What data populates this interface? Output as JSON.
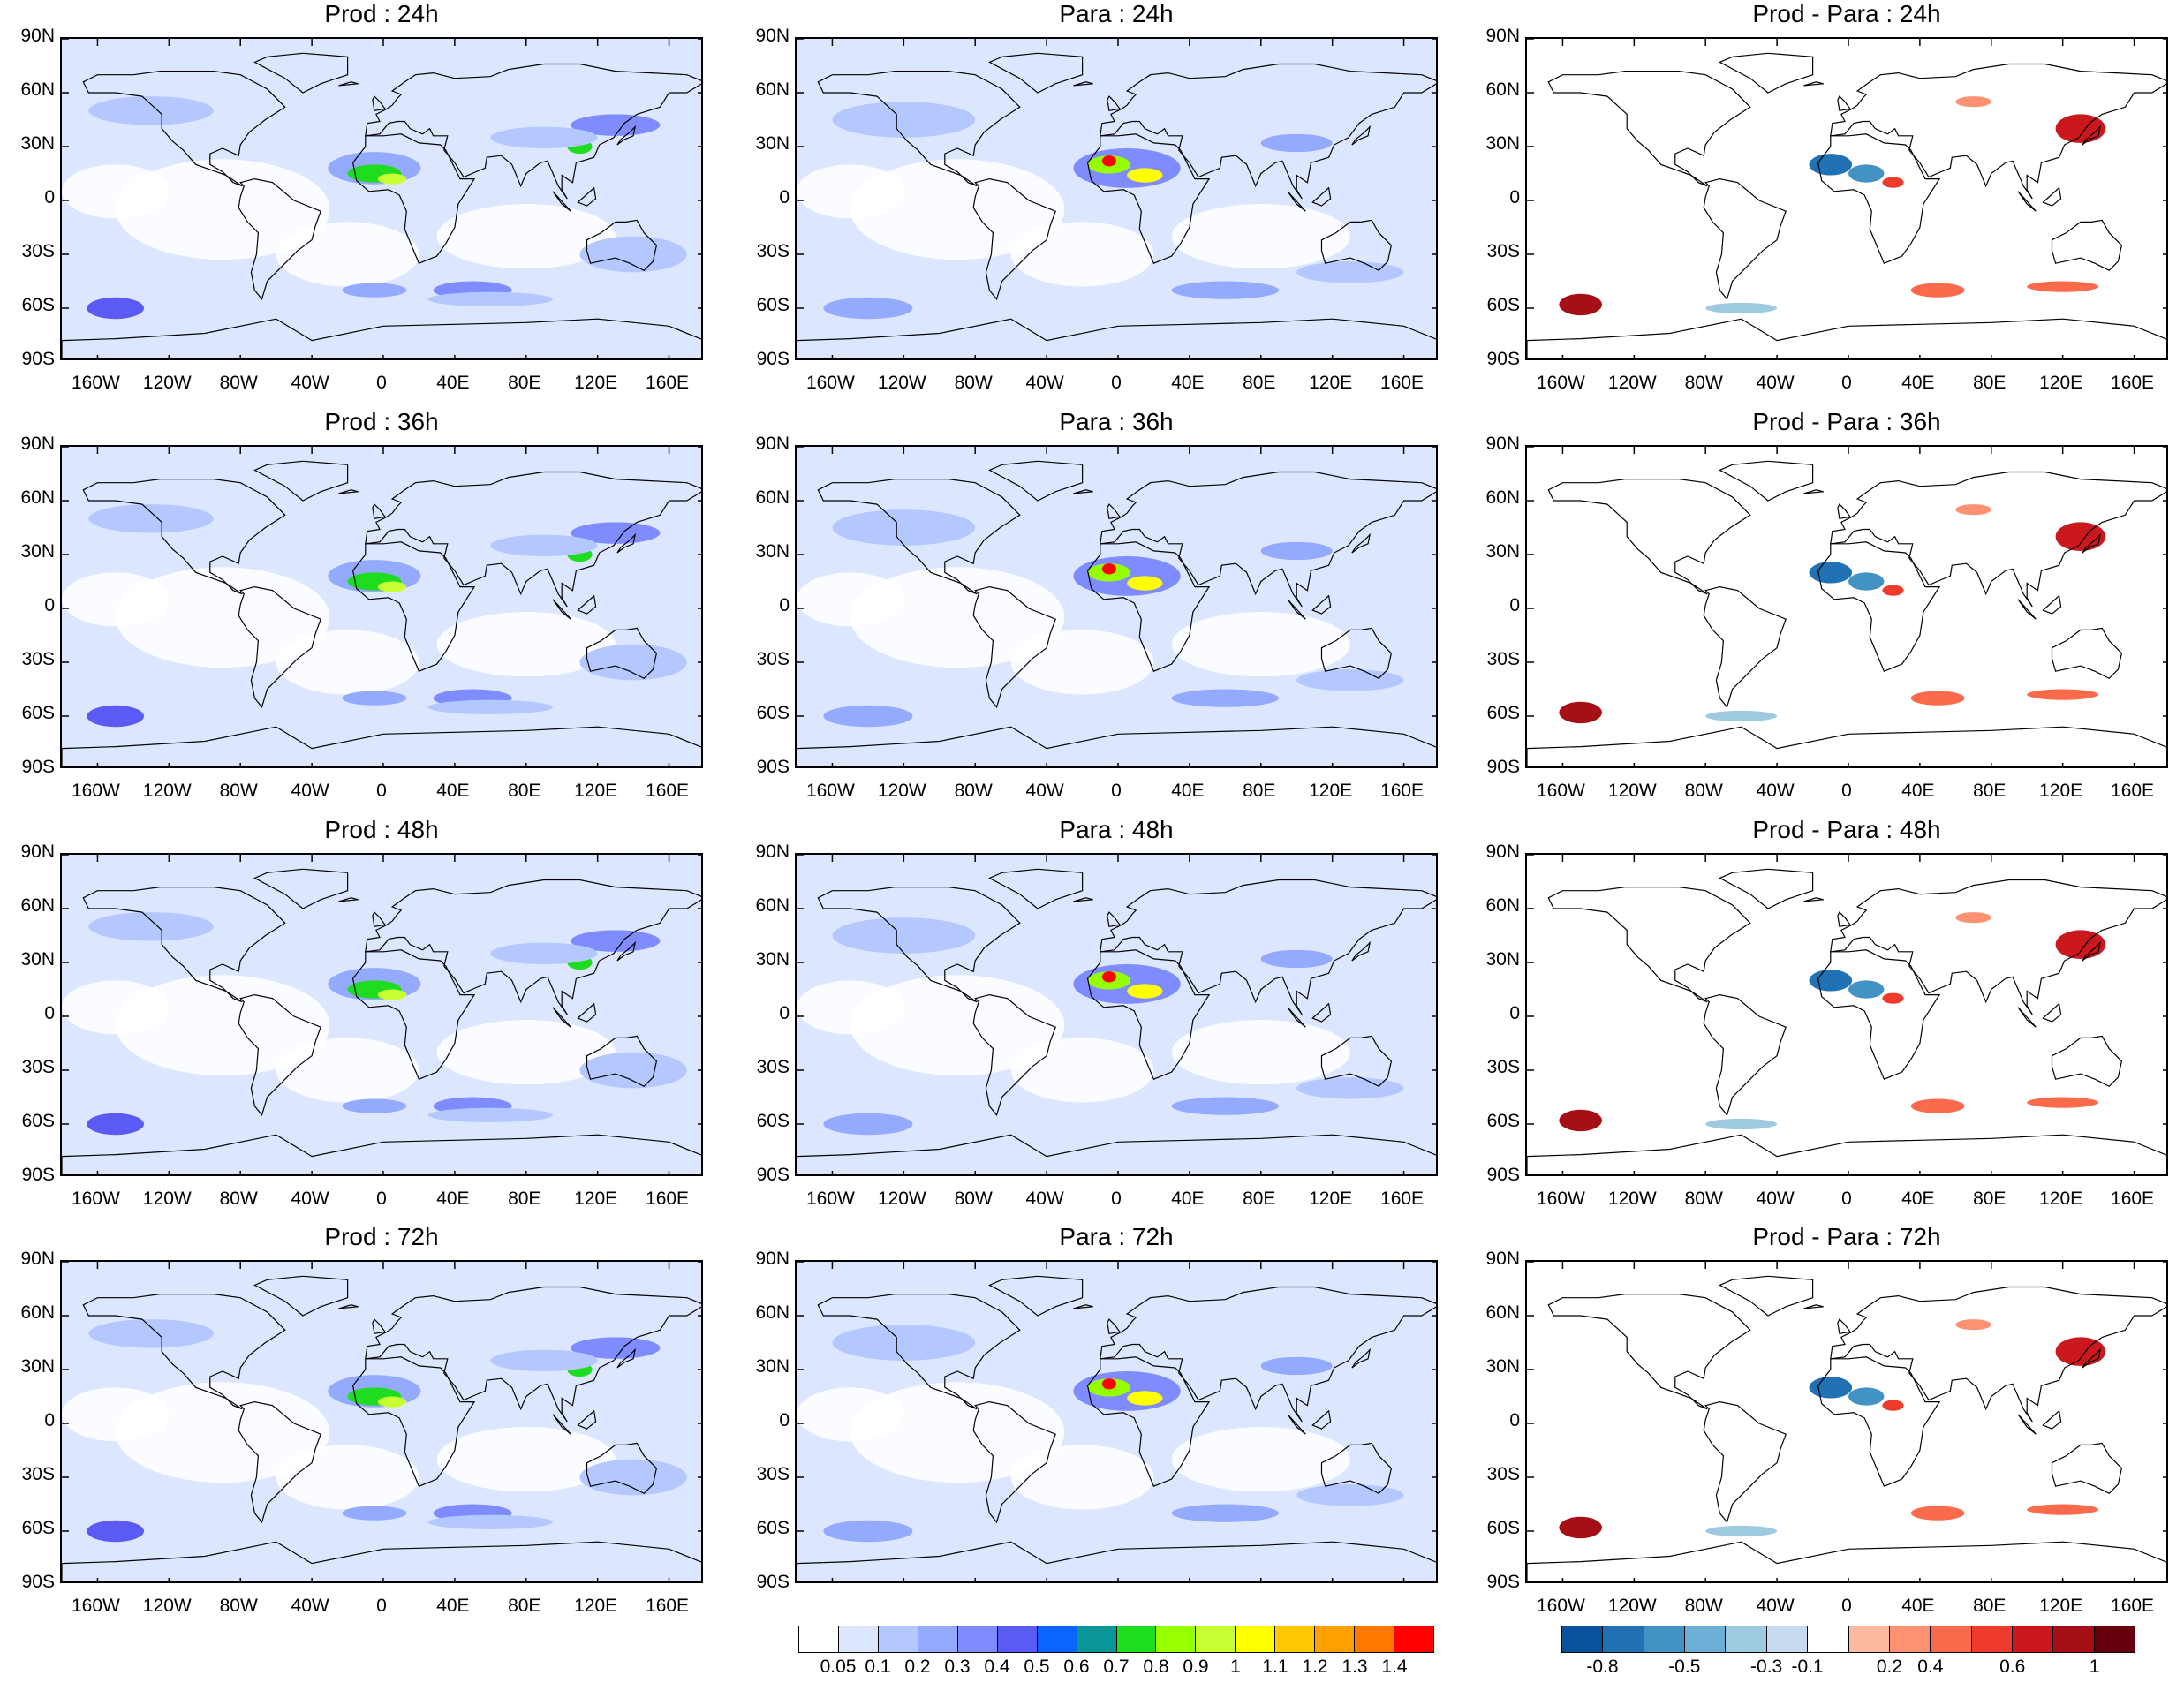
{
  "panels": [
    {
      "title": "Prod : 24h",
      "kind": "prod"
    },
    {
      "title": "Para : 24h",
      "kind": "para"
    },
    {
      "title": "Prod - Para : 24h",
      "kind": "diff"
    },
    {
      "title": "Prod : 36h",
      "kind": "prod"
    },
    {
      "title": "Para : 36h",
      "kind": "para"
    },
    {
      "title": "Prod - Para : 36h",
      "kind": "diff"
    },
    {
      "title": "Prod : 48h",
      "kind": "prod"
    },
    {
      "title": "Para : 48h",
      "kind": "para"
    },
    {
      "title": "Prod - Para : 48h",
      "kind": "diff"
    },
    {
      "title": "Prod : 72h",
      "kind": "prod"
    },
    {
      "title": "Para : 72h",
      "kind": "para"
    },
    {
      "title": "Prod - Para : 72h",
      "kind": "diff"
    }
  ],
  "lat_labels": [
    "90N",
    "60N",
    "30N",
    "0",
    "30S",
    "60S",
    "90S"
  ],
  "lon_labels": [
    "160W",
    "120W",
    "80W",
    "40W",
    "0",
    "40E",
    "80E",
    "120E",
    "160E"
  ],
  "colorbar_levels": {
    "labels": [
      "0.05",
      "0.1",
      "0.2",
      "0.3",
      "0.4",
      "0.5",
      "0.6",
      "0.7",
      "0.8",
      "0.9",
      "1",
      "1.1",
      "1.2",
      "1.3",
      "1.4"
    ],
    "colors": [
      "#ffffff",
      "#dce6ff",
      "#b4c8ff",
      "#94aaff",
      "#7f8cff",
      "#5a5af5",
      "#0a64ff",
      "#0a9696",
      "#1edc1e",
      "#96ff00",
      "#c8ff32",
      "#ffff00",
      "#ffc800",
      "#ffa000",
      "#ff7800",
      "#ff0000"
    ]
  },
  "colorbar_diff": {
    "labels": [
      "-0.8",
      "-0.5",
      "-0.3",
      "-0.1",
      "0.2",
      "0.4",
      "0.6",
      "1"
    ],
    "colors": [
      "#08519c",
      "#2171b5",
      "#4292c6",
      "#6baed6",
      "#9ecae1",
      "#c6dbef",
      "#ffffff",
      "#fcbba1",
      "#fc9272",
      "#fb6a4a",
      "#ef3b2c",
      "#cb181d",
      "#a50f15",
      "#67000d"
    ]
  }
}
